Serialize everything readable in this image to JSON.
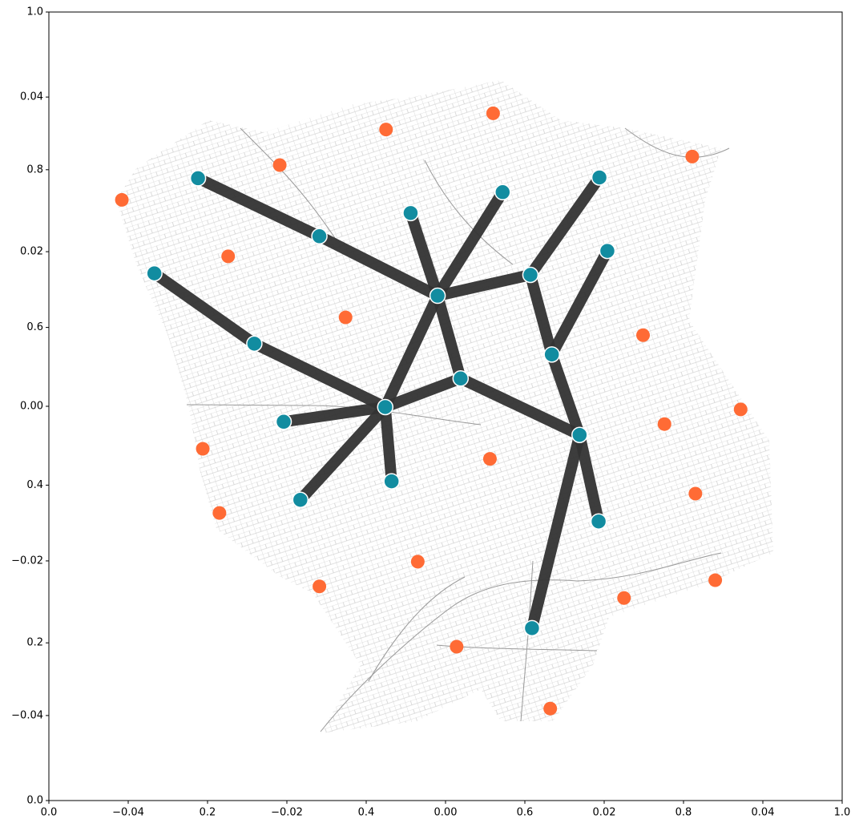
{
  "chart_data": [
    {
      "type": "frame",
      "xlim": [
        0,
        1
      ],
      "ylim": [
        0,
        1
      ],
      "xticks": [
        {
          "value": 0,
          "label": "0.0"
        },
        0.2,
        0.4,
        0.6,
        0.8,
        {
          "value": 1,
          "label": "1.0"
        }
      ],
      "yticks": [
        {
          "value": 0,
          "label": "0.0"
        },
        0.2,
        0.4,
        0.6,
        0.8,
        {
          "value": 1,
          "label": "1.0"
        }
      ]
    },
    {
      "type": "network",
      "xlim": [
        -0.05,
        0.05
      ],
      "ylim": [
        -0.051,
        0.051
      ],
      "xticks": [
        {
          "value": -0.04,
          "label": "−0.04"
        },
        {
          "value": -0.02,
          "label": "−0.02"
        },
        {
          "value": 0,
          "label": "0.00"
        },
        0.02,
        0.04
      ],
      "yticks": [
        {
          "value": -0.04,
          "label": "−0.04"
        },
        {
          "value": -0.02,
          "label": "−0.02"
        },
        {
          "value": 0,
          "label": "0.00"
        },
        0.02,
        0.04
      ],
      "nodes": {
        "color": "#128ca0",
        "x": [
          -0.0312,
          -0.0159,
          -0.0044,
          0.0072,
          0.0194,
          0.0204,
          0.0107,
          -0.001,
          -0.0367,
          -0.0241,
          0.0134,
          0.0019,
          -0.0076,
          -0.0204,
          0.0169,
          -0.0068,
          -0.0183,
          0.0193,
          0.0109
        ],
        "y": [
          0.0295,
          0.022,
          0.025,
          0.0277,
          0.0296,
          0.0201,
          0.017,
          0.0143,
          0.0172,
          0.0081,
          0.0067,
          0.0036,
          -0.0001,
          -0.002,
          -0.0037,
          -0.0097,
          -0.0121,
          -0.0149,
          -0.0287
        ]
      },
      "edges": [
        [
          0,
          1
        ],
        [
          1,
          7
        ],
        [
          2,
          7
        ],
        [
          3,
          7
        ],
        [
          7,
          6
        ],
        [
          6,
          4
        ],
        [
          6,
          10
        ],
        [
          5,
          10
        ],
        [
          7,
          12
        ],
        [
          7,
          11
        ],
        [
          8,
          9
        ],
        [
          9,
          12
        ],
        [
          12,
          13
        ],
        [
          12,
          11
        ],
        [
          12,
          15
        ],
        [
          12,
          16
        ],
        [
          11,
          14
        ],
        [
          10,
          14
        ],
        [
          14,
          17
        ],
        [
          14,
          18
        ]
      ],
      "edge_color": "#333333",
      "points": {
        "color": "#ff6b35",
        "x": [
          0.006,
          -0.0075,
          -0.0209,
          -0.0408,
          0.0311,
          -0.0274,
          -0.0126,
          0.0249,
          0.0372,
          0.0276,
          -0.0306,
          0.0056,
          0.0315,
          -0.0285,
          -0.0159,
          -0.0035,
          0.034,
          0.0225,
          0.0014,
          0.0132
        ],
        "y": [
          0.0379,
          0.0358,
          0.0312,
          0.0267,
          0.0323,
          0.0194,
          0.0115,
          0.0092,
          -0.0004,
          -0.0023,
          -0.0055,
          -0.0068,
          -0.0113,
          -0.0138,
          -0.0233,
          -0.0201,
          -0.0225,
          -0.0248,
          -0.0311,
          -0.0391
        ]
      }
    }
  ]
}
